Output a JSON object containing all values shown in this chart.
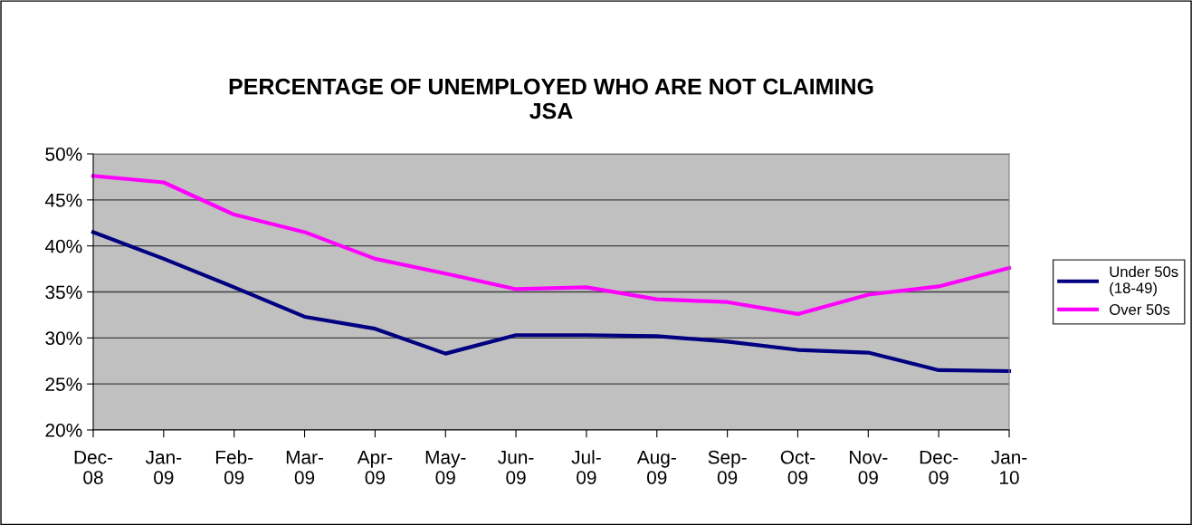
{
  "chart_data": {
    "type": "line",
    "title": "PERCENTAGE OF UNEMPLOYED WHO ARE NOT CLAIMING\nJSA",
    "categories": [
      "Dec-\n08",
      "Jan-\n09",
      "Feb-\n09",
      "Mar-\n09",
      "Apr-\n09",
      "May-\n09",
      "Jun-\n09",
      "Jul-\n09",
      "Aug-\n09",
      "Sep-\n09",
      "Oct-\n09",
      "Nov-\n09",
      "Dec-\n09",
      "Jan-\n10"
    ],
    "series": [
      {
        "name": "Under 50s\n(18-49)",
        "color": "#000080",
        "values": [
          41.5,
          38.6,
          35.5,
          32.3,
          31.0,
          28.3,
          30.3,
          30.3,
          30.2,
          29.6,
          28.7,
          28.4,
          26.5,
          26.4
        ]
      },
      {
        "name": "Over 50s",
        "color": "#ff00ff",
        "values": [
          47.6,
          46.9,
          43.4,
          41.5,
          38.6,
          37.0,
          35.3,
          35.5,
          34.2,
          33.9,
          32.6,
          34.7,
          35.6,
          37.6
        ]
      }
    ],
    "ylim": [
      20,
      50
    ],
    "yticks": [
      {
        "value": 20,
        "label": "20%"
      },
      {
        "value": 25,
        "label": "25%"
      },
      {
        "value": 30,
        "label": "30%"
      },
      {
        "value": 35,
        "label": "35%"
      },
      {
        "value": 40,
        "label": "40%"
      },
      {
        "value": 45,
        "label": "45%"
      },
      {
        "value": 50,
        "label": "50%"
      }
    ],
    "grid": "y",
    "legend": "right",
    "marker": "none",
    "line_style": "solid"
  }
}
